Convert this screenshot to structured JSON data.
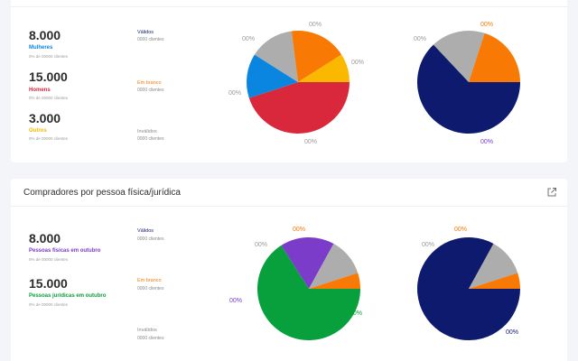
{
  "colors": {
    "blue": "#0a86e0",
    "red": "#d9283c",
    "yellow": "#fab800",
    "orange": "#f87904",
    "gray": "#adadad",
    "navy": "#0d1a6e",
    "purple": "#7b3cc9",
    "green": "#07a03c",
    "background": "#f3f5f9"
  },
  "card1": {
    "stats": [
      {
        "value": "8.000",
        "label": "Mulheres",
        "sub": "0% de 00000 clientes",
        "color": "#0a86e0"
      },
      {
        "value": "15.000",
        "label": "Homens",
        "sub": "0% de 00000 clientes",
        "color": "#d9283c"
      },
      {
        "value": "3.000",
        "label": "Outros",
        "sub": "0% de 00000 clientes",
        "color": "#fab800"
      }
    ],
    "status": [
      {
        "label": "Válidos",
        "sub": "0000 clientes",
        "color": "#0d1a6e"
      },
      {
        "label": "Em branco",
        "sub": "0000 clientes",
        "color": "#f87904"
      },
      {
        "label": "Inválidos",
        "sub": "0000 clientes",
        "color": "#9a9a9a"
      }
    ],
    "pie_left": {
      "slices": [
        {
          "value": 45,
          "color": "#d9283c"
        },
        {
          "value": 14,
          "color": "#0a86e0"
        },
        {
          "value": 14,
          "color": "#adadad"
        },
        {
          "value": 18,
          "color": "#f87904"
        },
        {
          "value": 9,
          "color": "#fab800"
        }
      ],
      "labels": [
        "00%",
        "00%",
        "00%",
        "00%"
      ]
    },
    "pie_right": {
      "slices": [
        {
          "value": 63,
          "color": "#0d1a6e"
        },
        {
          "value": 17,
          "color": "#adadad"
        },
        {
          "value": 20,
          "color": "#f87904"
        }
      ],
      "labels": [
        "00%",
        "00%",
        "00%"
      ]
    }
  },
  "card2": {
    "title": "Compradores por pessoa física/jurídica",
    "stats": [
      {
        "value": "8.000",
        "label": "Pessoas físicas em outubro",
        "sub": "0% de 00000 clientes",
        "color": "#7b3cc9"
      },
      {
        "value": "15.000",
        "label": "Pessoas jurídicas em outubro",
        "sub": "0% de 00000 clientes",
        "color": "#07a03c"
      }
    ],
    "status": [
      {
        "label": "Válidos",
        "sub": "0000 clientes",
        "color": "#0d1a6e"
      },
      {
        "label": "Em branco",
        "sub": "0000 clientes",
        "color": "#f87904"
      },
      {
        "label": "Inválidos",
        "sub": "0000 clientes",
        "color": "#9a9a9a"
      }
    ],
    "pie_left": {
      "slices": [
        {
          "value": 66,
          "color": "#07a03c"
        },
        {
          "value": 17,
          "color": "#7b3cc9"
        },
        {
          "value": 12,
          "color": "#adadad"
        },
        {
          "value": 5,
          "color": "#f87904"
        }
      ],
      "labels": [
        "00%",
        "00%",
        "00%",
        "00%"
      ]
    },
    "pie_right": {
      "slices": [
        {
          "value": 83,
          "color": "#0d1a6e"
        },
        {
          "value": 12,
          "color": "#adadad"
        },
        {
          "value": 5,
          "color": "#f87904"
        }
      ],
      "labels": [
        "00%",
        "00%",
        "00%"
      ]
    }
  }
}
